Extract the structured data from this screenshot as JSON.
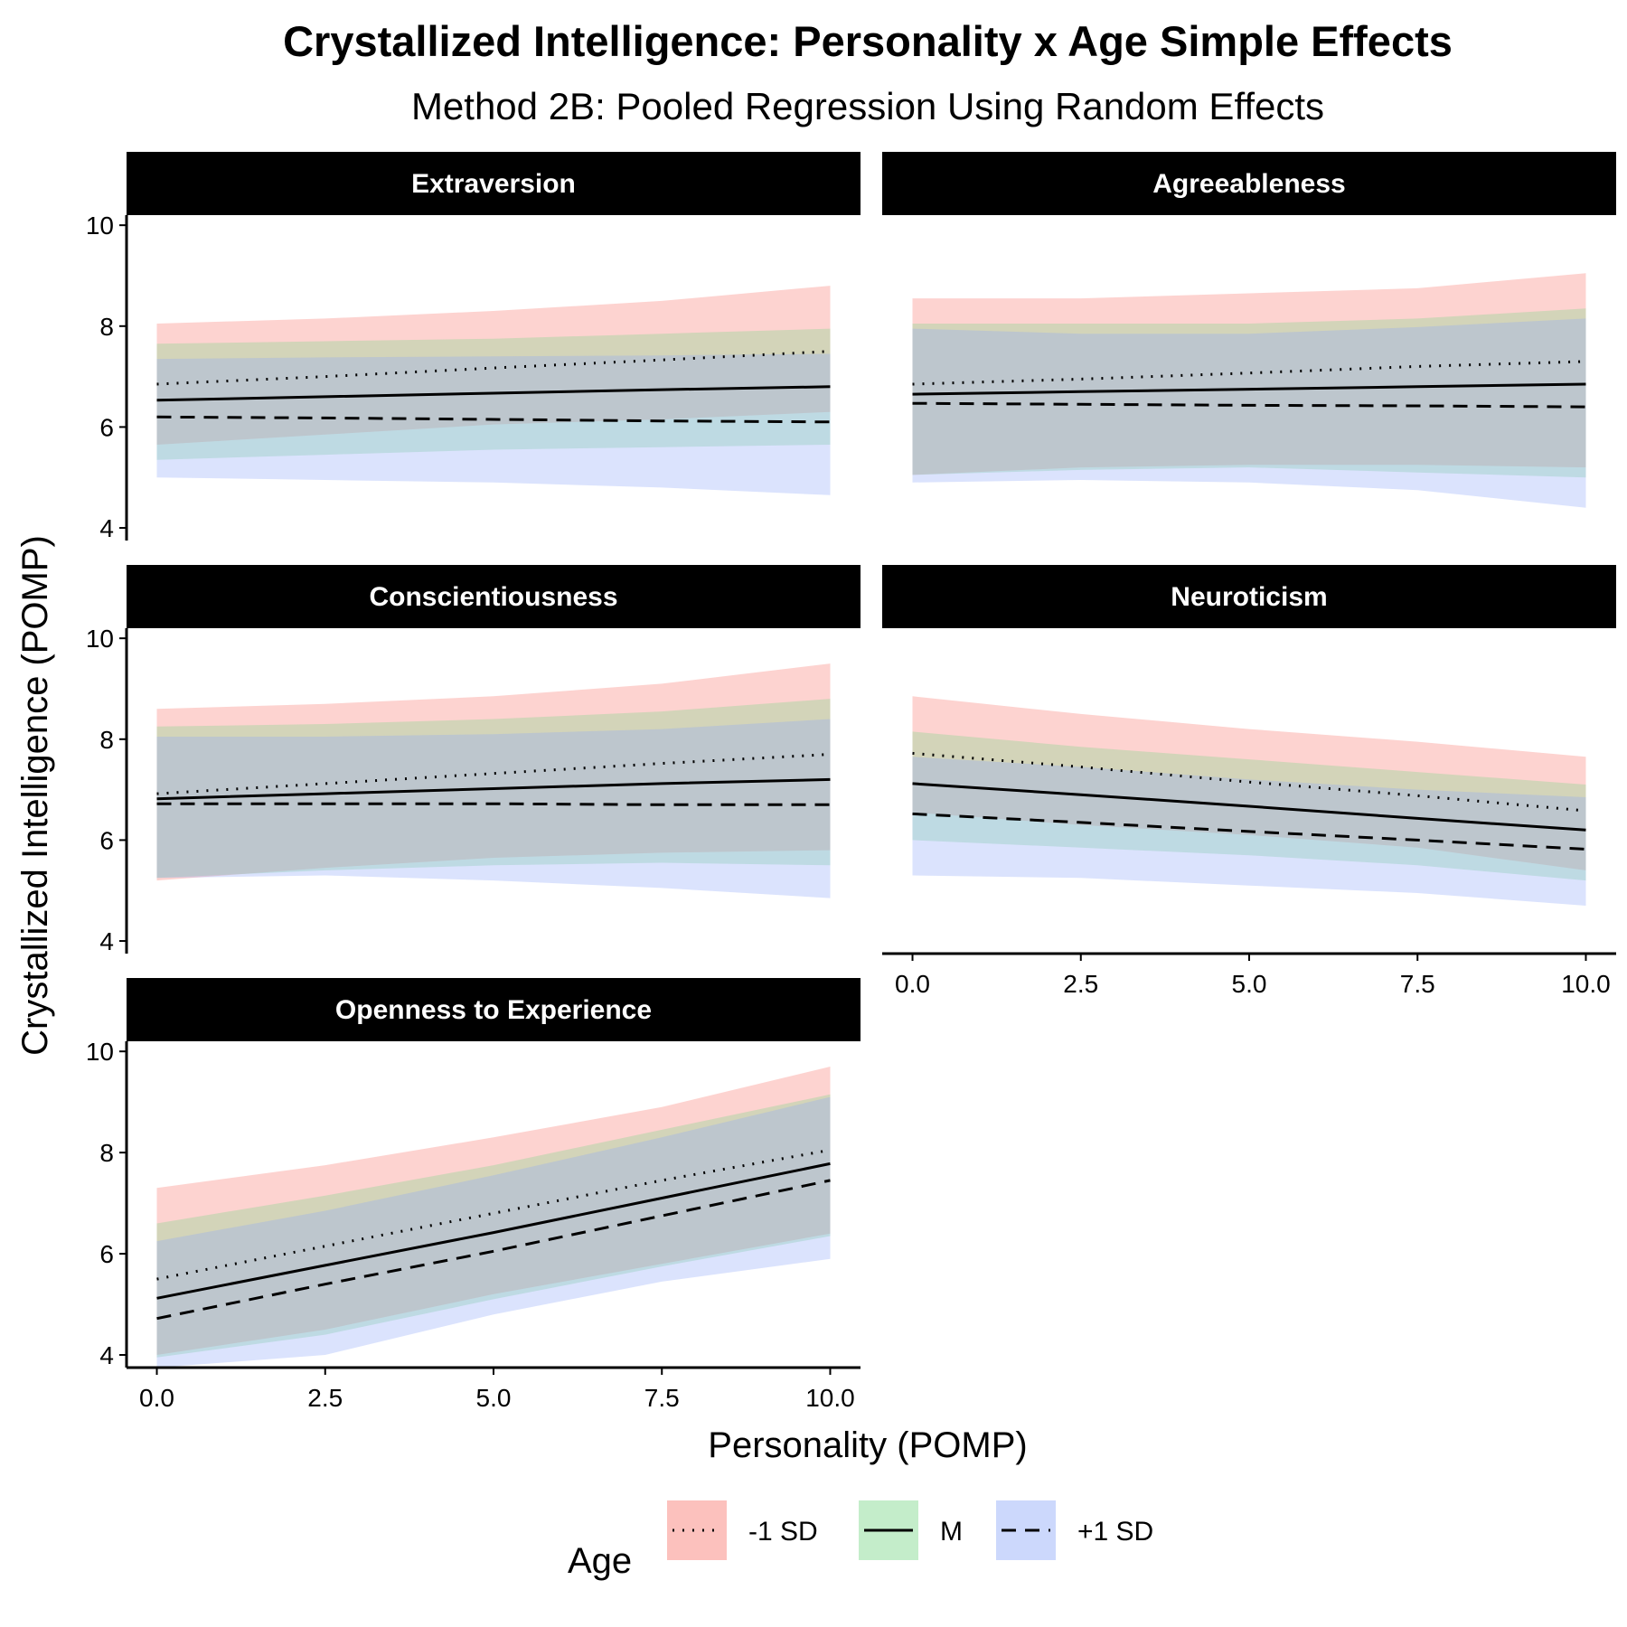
{
  "chart_data": {
    "type": "line",
    "title": "Crystallized Intelligence: Personality x Age Simple Effects",
    "subtitle": "Method 2B: Pooled Regression Using Random Effects",
    "xlabel": "Personality (POMP)",
    "ylabel": "Crystallized Intelligence (POMP)",
    "xlim": [
      -0.45,
      10.45
    ],
    "ylim": [
      3.75,
      10.2
    ],
    "x_ticks": [
      "0.0",
      "2.5",
      "5.0",
      "7.5",
      "10.0"
    ],
    "y_ticks": [
      "4",
      "6",
      "8",
      "10"
    ],
    "grid": false,
    "legend": {
      "title": "Age",
      "position": "bottom",
      "entries": [
        {
          "label": "-1 SD",
          "linetype": "dotted",
          "fill": "#f8766d"
        },
        {
          "label": "M",
          "linetype": "solid",
          "fill": "#7cd88a"
        },
        {
          "label": "+1 SD",
          "linetype": "dashed",
          "fill": "#8fa9f8"
        }
      ]
    },
    "panels": [
      {
        "name": "Extraversion",
        "x": [
          0,
          2.5,
          5,
          7.5,
          10
        ],
        "series": [
          {
            "name": "-1 SD",
            "values": [
              6.85,
              7.0,
              7.17,
              7.33,
              7.5
            ],
            "lower": [
              5.65,
              5.85,
              6.05,
              6.15,
              6.3
            ],
            "upper": [
              8.05,
              8.15,
              8.3,
              8.5,
              8.8
            ]
          },
          {
            "name": "M",
            "values": [
              6.53,
              6.6,
              6.67,
              6.74,
              6.8
            ],
            "lower": [
              5.35,
              5.45,
              5.55,
              5.6,
              5.65
            ],
            "upper": [
              7.65,
              7.7,
              7.75,
              7.85,
              7.95
            ]
          },
          {
            "name": "+1 SD",
            "values": [
              6.2,
              6.18,
              6.15,
              6.12,
              6.1
            ],
            "lower": [
              5.0,
              4.95,
              4.9,
              4.8,
              4.65
            ],
            "upper": [
              7.35,
              7.38,
              7.4,
              7.42,
              7.45
            ]
          }
        ]
      },
      {
        "name": "Agreeableness",
        "x": [
          0,
          2.5,
          5,
          7.5,
          10
        ],
        "series": [
          {
            "name": "-1 SD",
            "values": [
              6.85,
              6.95,
              7.07,
              7.2,
              7.3
            ],
            "lower": [
              5.05,
              5.2,
              5.25,
              5.25,
              5.2
            ],
            "upper": [
              8.55,
              8.55,
              8.65,
              8.75,
              9.05
            ]
          },
          {
            "name": "M",
            "values": [
              6.65,
              6.7,
              6.75,
              6.8,
              6.85
            ],
            "lower": [
              5.05,
              5.15,
              5.2,
              5.1,
              5.0
            ],
            "upper": [
              8.05,
              8.05,
              8.05,
              8.15,
              8.35
            ]
          },
          {
            "name": "+1 SD",
            "values": [
              6.47,
              6.45,
              6.43,
              6.42,
              6.4
            ],
            "lower": [
              4.9,
              4.95,
              4.9,
              4.75,
              4.4
            ],
            "upper": [
              7.95,
              7.85,
              7.85,
              7.98,
              8.15
            ]
          }
        ]
      },
      {
        "name": "Conscientiousness",
        "x": [
          0,
          2.5,
          5,
          7.5,
          10
        ],
        "series": [
          {
            "name": "-1 SD",
            "values": [
              6.92,
              7.12,
              7.32,
              7.52,
              7.7
            ],
            "lower": [
              5.2,
              5.45,
              5.65,
              5.75,
              5.8
            ],
            "upper": [
              8.6,
              8.7,
              8.85,
              9.1,
              9.5
            ]
          },
          {
            "name": "M",
            "values": [
              6.82,
              6.92,
              7.02,
              7.12,
              7.2
            ],
            "lower": [
              5.25,
              5.4,
              5.5,
              5.55,
              5.5
            ],
            "upper": [
              8.25,
              8.3,
              8.4,
              8.55,
              8.8
            ]
          },
          {
            "name": "+1 SD",
            "values": [
              6.72,
              6.72,
              6.72,
              6.7,
              6.7
            ],
            "lower": [
              5.25,
              5.3,
              5.2,
              5.05,
              4.85
            ],
            "upper": [
              8.05,
              8.05,
              8.1,
              8.2,
              8.4
            ]
          }
        ]
      },
      {
        "name": "Neuroticism",
        "x": [
          0,
          2.5,
          5,
          7.5,
          10
        ],
        "series": [
          {
            "name": "-1 SD",
            "values": [
              7.72,
              7.45,
              7.15,
              6.88,
              6.58
            ],
            "lower": [
              6.55,
              6.3,
              6.1,
              5.85,
              5.4
            ],
            "upper": [
              8.85,
              8.5,
              8.2,
              7.95,
              7.65
            ]
          },
          {
            "name": "M",
            "values": [
              7.12,
              6.9,
              6.67,
              6.43,
              6.2
            ],
            "lower": [
              6.0,
              5.85,
              5.7,
              5.5,
              5.2
            ],
            "upper": [
              8.15,
              7.85,
              7.6,
              7.35,
              7.1
            ]
          },
          {
            "name": "+1 SD",
            "values": [
              6.52,
              6.35,
              6.17,
              6.0,
              5.82
            ],
            "lower": [
              5.3,
              5.25,
              5.1,
              4.95,
              4.7
            ],
            "upper": [
              7.65,
              7.45,
              7.2,
              7.0,
              6.85
            ]
          }
        ]
      },
      {
        "name": "Openness to Experience",
        "x": [
          0,
          2.5,
          5,
          7.5,
          10
        ],
        "series": [
          {
            "name": "-1 SD",
            "values": [
              5.5,
              6.15,
              6.8,
              7.45,
              8.05
            ],
            "lower": [
              4.0,
              4.5,
              5.2,
              5.8,
              6.4
            ],
            "upper": [
              7.3,
              7.75,
              8.3,
              8.9,
              9.7
            ]
          },
          {
            "name": "M",
            "values": [
              5.12,
              5.77,
              6.42,
              7.1,
              7.78
            ],
            "lower": [
              3.95,
              4.4,
              5.1,
              5.75,
              6.35
            ],
            "upper": [
              6.6,
              7.15,
              7.75,
              8.45,
              9.15
            ]
          },
          {
            "name": "+1 SD",
            "values": [
              4.72,
              5.4,
              6.05,
              6.75,
              7.45
            ],
            "lower": [
              3.75,
              4.0,
              4.8,
              5.45,
              5.9
            ],
            "upper": [
              6.25,
              6.85,
              7.55,
              8.3,
              9.1
            ]
          }
        ]
      }
    ]
  }
}
